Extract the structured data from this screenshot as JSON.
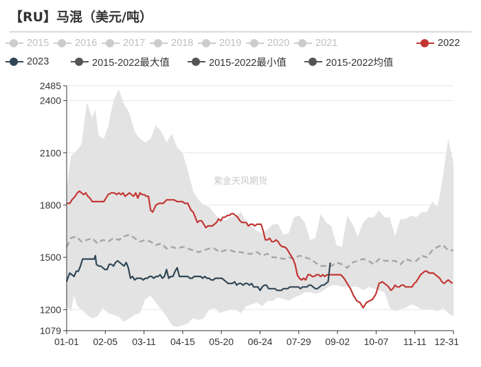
{
  "title": "【RU】马混（美元/吨）",
  "watermark": "紫金天风期货",
  "chart_data": {
    "type": "line",
    "yticks": [
      1079,
      1200,
      1500,
      1800,
      2100,
      2400,
      2485
    ],
    "ylim": [
      1079,
      2485
    ],
    "xticks": [
      "01-01",
      "02-05",
      "03-11",
      "04-15",
      "05-20",
      "06-24",
      "07-29",
      "09-02",
      "10-07",
      "11-11",
      "12-31"
    ],
    "legend": [
      {
        "name": "2015",
        "color": "#cccccc",
        "active": false
      },
      {
        "name": "2016",
        "color": "#cccccc",
        "active": false
      },
      {
        "name": "2017",
        "color": "#cccccc",
        "active": false
      },
      {
        "name": "2018",
        "color": "#cccccc",
        "active": false
      },
      {
        "name": "2019",
        "color": "#cccccc",
        "active": false
      },
      {
        "name": "2020",
        "color": "#cccccc",
        "active": false
      },
      {
        "name": "2021",
        "color": "#cccccc",
        "active": false
      },
      {
        "name": "2022",
        "color": "#c23531",
        "active": true
      },
      {
        "name": "2023",
        "color": "#2f4554",
        "active": true
      },
      {
        "name": "2015-2022最大值",
        "color": "#555555",
        "active": true
      },
      {
        "name": "2015-2022最小值",
        "color": "#555555",
        "active": true
      },
      {
        "name": "2015-2022均值",
        "color": "#555555",
        "active": true
      }
    ],
    "series": {
      "max": {
        "x": [
          1,
          5,
          10,
          15,
          20,
          25,
          28,
          31,
          36,
          40,
          45,
          50,
          55,
          60,
          65,
          70,
          75,
          80,
          85,
          90,
          95,
          100,
          105,
          110,
          115,
          120,
          125,
          130,
          135,
          140,
          145,
          150,
          155,
          160,
          165,
          170,
          175,
          180,
          185,
          190,
          195,
          200,
          205,
          210,
          215,
          220,
          225,
          230,
          235,
          240,
          245,
          250,
          255,
          260,
          265,
          270,
          275,
          280,
          285,
          290,
          295,
          300,
          305,
          310,
          315,
          320,
          325,
          330,
          335,
          340,
          345,
          350,
          355,
          360,
          365
        ],
        "y": [
          1890,
          2080,
          2110,
          2150,
          2390,
          2300,
          2350,
          2200,
          2180,
          2250,
          2400,
          2465,
          2380,
          2330,
          2220,
          2180,
          2160,
          2180,
          2260,
          2220,
          2160,
          2210,
          2130,
          2100,
          2000,
          1880,
          1830,
          1800,
          1790,
          1750,
          1720,
          1710,
          1730,
          1740,
          1760,
          1700,
          1680,
          1650,
          1640,
          1660,
          1690,
          1690,
          1630,
          1640,
          1730,
          1740,
          1700,
          1600,
          1610,
          1750,
          1700,
          1680,
          1570,
          1560,
          1740,
          1690,
          1620,
          1700,
          1730,
          1730,
          1770,
          1730,
          1730,
          1620,
          1720,
          1720,
          1740,
          1730,
          1760,
          1760,
          1820,
          1790,
          1960,
          2180,
          2040
        ]
      },
      "min": {
        "x": [
          1,
          5,
          8,
          11,
          15,
          20,
          25,
          30,
          35,
          40,
          45,
          50,
          55,
          60,
          65,
          70,
          75,
          80,
          85,
          90,
          95,
          100,
          105,
          110,
          115,
          120,
          125,
          130,
          135,
          140,
          145,
          150,
          155,
          160,
          165,
          170,
          175,
          180,
          185,
          190,
          195,
          200,
          205,
          210,
          215,
          220,
          225,
          230,
          235,
          240,
          245,
          250,
          255,
          260,
          265,
          270,
          275,
          280,
          285,
          290,
          295,
          300,
          305,
          310,
          315,
          320,
          325,
          330,
          335,
          340,
          345,
          350,
          355,
          360,
          365
        ],
        "y": [
          1220,
          1190,
          1280,
          1220,
          1200,
          1170,
          1150,
          1160,
          1210,
          1180,
          1170,
          1160,
          1130,
          1150,
          1170,
          1180,
          1260,
          1280,
          1240,
          1200,
          1160,
          1110,
          1100,
          1110,
          1120,
          1150,
          1140,
          1150,
          1200,
          1210,
          1180,
          1190,
          1200,
          1200,
          1180,
          1220,
          1230,
          1240,
          1220,
          1250,
          1250,
          1270,
          1260,
          1250,
          1270,
          1280,
          1300,
          1300,
          1290,
          1300,
          1320,
          1340,
          1340,
          1330,
          1330,
          1330,
          1330,
          1310,
          1330,
          1320,
          1310,
          1300,
          1210,
          1190,
          1200,
          1210,
          1230,
          1220,
          1200,
          1200,
          1200,
          1190,
          1210,
          1180,
          1160
        ]
      },
      "avg": {
        "x": [
          1,
          5,
          10,
          15,
          20,
          25,
          30,
          35,
          40,
          45,
          50,
          55,
          60,
          65,
          70,
          75,
          80,
          85,
          90,
          95,
          100,
          105,
          110,
          115,
          120,
          125,
          130,
          135,
          140,
          145,
          150,
          155,
          160,
          165,
          170,
          175,
          180,
          185,
          190,
          195,
          200,
          205,
          210,
          215,
          220,
          225,
          230,
          235,
          240,
          245,
          250,
          255,
          260,
          265,
          270,
          275,
          280,
          285,
          290,
          295,
          300,
          305,
          310,
          315,
          320,
          325,
          330,
          335,
          340,
          345,
          350,
          355,
          360,
          365
        ],
        "y": [
          1560,
          1610,
          1620,
          1590,
          1600,
          1610,
          1580,
          1600,
          1590,
          1610,
          1600,
          1620,
          1630,
          1610,
          1590,
          1600,
          1590,
          1570,
          1580,
          1550,
          1560,
          1550,
          1560,
          1550,
          1540,
          1530,
          1540,
          1550,
          1550,
          1530,
          1540,
          1540,
          1530,
          1530,
          1520,
          1520,
          1530,
          1510,
          1520,
          1500,
          1500,
          1490,
          1500,
          1490,
          1510,
          1500,
          1490,
          1470,
          1450,
          1450,
          1450,
          1470,
          1460,
          1440,
          1470,
          1480,
          1490,
          1480,
          1460,
          1490,
          1480,
          1480,
          1480,
          1460,
          1490,
          1480,
          1480,
          1510,
          1500,
          1540,
          1560,
          1570,
          1540,
          1540
        ]
      },
      "2022": {
        "x": [
          1,
          4,
          6,
          9,
          11,
          13,
          15,
          17,
          19,
          21,
          23,
          25,
          28,
          31,
          33,
          36,
          38,
          40,
          43,
          46,
          48,
          50,
          52,
          54,
          56,
          58,
          60,
          62,
          64,
          66,
          68,
          70,
          72,
          74,
          76,
          78,
          80,
          82,
          85,
          88,
          90,
          92,
          95,
          98,
          100,
          102,
          105,
          108,
          110,
          112,
          115,
          118,
          120,
          122,
          124,
          126,
          128,
          130,
          132,
          134,
          136,
          138,
          140,
          142,
          144,
          146,
          148,
          150,
          152,
          154,
          156,
          158,
          160,
          162,
          164,
          166,
          168,
          170,
          172,
          174,
          176,
          178,
          180,
          182,
          184,
          186,
          188,
          190,
          192,
          194,
          196,
          198,
          200,
          202,
          204,
          206,
          208,
          210,
          212,
          214,
          216,
          218,
          220,
          222,
          224,
          226,
          228,
          230,
          232,
          234,
          236,
          238,
          240,
          242,
          244,
          246,
          248,
          250,
          253,
          256,
          259,
          262,
          265,
          268,
          271,
          274,
          277,
          280,
          283,
          286,
          289,
          292,
          295,
          298,
          300,
          302,
          304,
          306,
          308,
          310,
          312,
          314,
          316,
          318,
          320,
          322,
          324,
          326,
          328,
          330,
          332,
          334,
          336,
          338,
          340,
          342,
          344,
          346,
          348,
          350,
          352,
          354,
          356,
          358,
          360,
          362,
          364
        ],
        "y": [
          1810,
          1810,
          1830,
          1850,
          1870,
          1880,
          1870,
          1860,
          1870,
          1850,
          1840,
          1820,
          1820,
          1820,
          1820,
          1820,
          1840,
          1860,
          1870,
          1870,
          1860,
          1870,
          1860,
          1870,
          1850,
          1860,
          1870,
          1860,
          1850,
          1870,
          1840,
          1870,
          1860,
          1860,
          1850,
          1850,
          1770,
          1760,
          1800,
          1810,
          1810,
          1810,
          1830,
          1830,
          1830,
          1830,
          1820,
          1820,
          1820,
          1810,
          1810,
          1770,
          1760,
          1730,
          1700,
          1710,
          1710,
          1690,
          1670,
          1680,
          1680,
          1680,
          1690,
          1700,
          1720,
          1710,
          1730,
          1730,
          1740,
          1740,
          1750,
          1750,
          1740,
          1730,
          1710,
          1700,
          1700,
          1700,
          1680,
          1690,
          1690,
          1680,
          1690,
          1690,
          1690,
          1650,
          1600,
          1600,
          1610,
          1590,
          1590,
          1600,
          1590,
          1570,
          1560,
          1560,
          1550,
          1530,
          1510,
          1490,
          1460,
          1400,
          1380,
          1370,
          1380,
          1370,
          1400,
          1400,
          1390,
          1390,
          1400,
          1400,
          1390,
          1400,
          1390,
          1400,
          1400,
          1400,
          1400,
          1400,
          1400,
          1380,
          1350,
          1320,
          1280,
          1250,
          1240,
          1210,
          1240,
          1250,
          1260,
          1290,
          1350,
          1360,
          1350,
          1340,
          1330,
          1310,
          1320,
          1340,
          1330,
          1330,
          1340,
          1340,
          1330,
          1330,
          1330,
          1330,
          1350,
          1360,
          1380,
          1400,
          1410,
          1420,
          1420,
          1410,
          1410,
          1410,
          1400,
          1390,
          1380,
          1360,
          1350,
          1360,
          1370,
          1360,
          1350
        ]
      },
      "2023": {
        "x": [
          1,
          2,
          4,
          6,
          8,
          10,
          12,
          14,
          16,
          17,
          19,
          21,
          23,
          25,
          27,
          28,
          29,
          31,
          33,
          35,
          37,
          39,
          41,
          43,
          45,
          47,
          49,
          51,
          53,
          55,
          57,
          59,
          61,
          63,
          65,
          67,
          69,
          71,
          73,
          75,
          77,
          79,
          81,
          83,
          85,
          87,
          89,
          91,
          93,
          95,
          97,
          99,
          101,
          103,
          105,
          107,
          109,
          111,
          113,
          115,
          117,
          119,
          121,
          123,
          125,
          127,
          129,
          131,
          133,
          135,
          137,
          139,
          141,
          143,
          145,
          147,
          149,
          151,
          153,
          155,
          157,
          159,
          161,
          163,
          165,
          167,
          169,
          171,
          173,
          175,
          177,
          179,
          181,
          183,
          185,
          187,
          189,
          191,
          193,
          195,
          197,
          199,
          201,
          203,
          205,
          207,
          209,
          211,
          213,
          215,
          217,
          219,
          221,
          223,
          225,
          227,
          229,
          231,
          233,
          235,
          237,
          239,
          241,
          243,
          245,
          247,
          249
        ],
        "y": [
          1360,
          1380,
          1410,
          1400,
          1390,
          1420,
          1420,
          1450,
          1490,
          1490,
          1490,
          1490,
          1490,
          1490,
          1490,
          1510,
          1460,
          1450,
          1450,
          1440,
          1430,
          1430,
          1460,
          1460,
          1450,
          1470,
          1480,
          1470,
          1460,
          1450,
          1470,
          1440,
          1380,
          1390,
          1370,
          1380,
          1380,
          1380,
          1370,
          1380,
          1380,
          1390,
          1390,
          1380,
          1390,
          1390,
          1400,
          1380,
          1390,
          1430,
          1380,
          1390,
          1390,
          1420,
          1440,
          1390,
          1390,
          1390,
          1390,
          1390,
          1380,
          1380,
          1390,
          1390,
          1390,
          1390,
          1380,
          1390,
          1380,
          1380,
          1370,
          1370,
          1380,
          1380,
          1380,
          1380,
          1370,
          1360,
          1350,
          1350,
          1350,
          1360,
          1340,
          1350,
          1350,
          1340,
          1350,
          1350,
          1340,
          1350,
          1330,
          1330,
          1330,
          1310,
          1330,
          1340,
          1340,
          1320,
          1320,
          1320,
          1320,
          1310,
          1310,
          1310,
          1320,
          1320,
          1320,
          1330,
          1330,
          1330,
          1330,
          1330,
          1320,
          1330,
          1330,
          1330,
          1340,
          1340,
          1330,
          1320,
          1320,
          1330,
          1340,
          1340,
          1350,
          1360,
          1470
        ]
      }
    }
  }
}
